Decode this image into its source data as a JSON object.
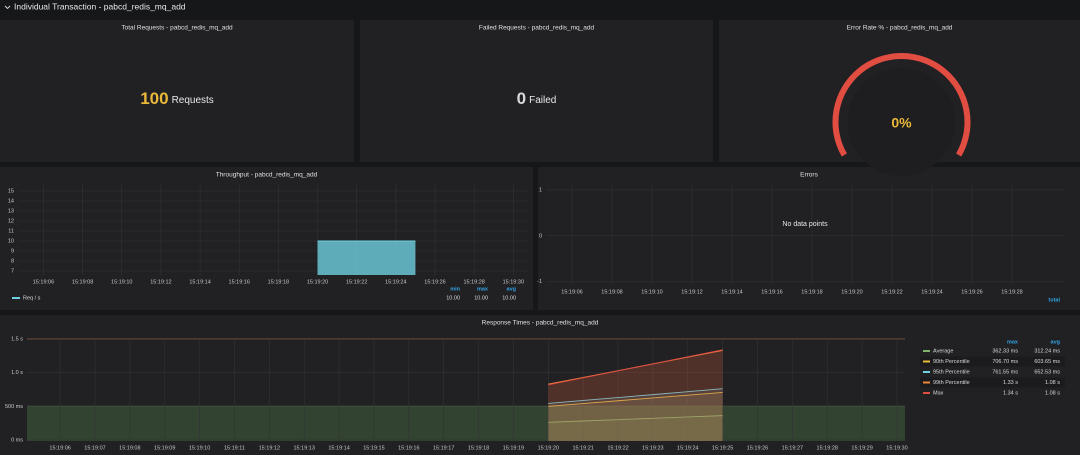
{
  "header": {
    "title": "Individual Transaction - pabcd_redis_mq_add"
  },
  "stats": [
    {
      "title": "Total Requests - pabcd_redis_mq_add",
      "value": 100,
      "unit": "Requests",
      "color": "#eab839"
    },
    {
      "title": "Failed Requests - pabcd_redis_mq_add",
      "value": 0,
      "unit": "Failed",
      "color": "#d8d9da"
    },
    {
      "title": "Error Rate % - pabcd_redis_mq_add",
      "value": 0,
      "value_label": "0%",
      "color": "#eab839",
      "gauge_color": "#e24d42"
    }
  ],
  "throughput": {
    "type": "bar",
    "title": "Throughput - pabcd_redis_mq_add",
    "x": [
      "15:19:20",
      "15:19:25"
    ],
    "series": [
      {
        "name": "Req / s",
        "color": "#6ed0e0",
        "values": [
          10,
          10
        ],
        "stats": [
          "10.00",
          "10.00",
          "10.00"
        ]
      }
    ],
    "stat_columns": [
      "min",
      "max",
      "avg"
    ],
    "xlim": [
      "15:19:04.7",
      "15:19:30.75"
    ],
    "xticks": [
      "15:19:06",
      "15:19:08",
      "15:19:10",
      "15:19:12",
      "15:19:14",
      "15:19:16",
      "15:19:18",
      "15:19:20",
      "15:19:22",
      "15:19:24",
      "15:19:26",
      "15:19:28",
      "15:19:30"
    ],
    "ylim": [
      6.6,
      15.7
    ],
    "yticks": [
      7,
      8,
      9,
      10,
      11,
      12,
      13,
      14,
      15
    ],
    "grid": true
  },
  "errors": {
    "type": "line",
    "title": "Errors",
    "message": "No data points",
    "x": [],
    "series": [],
    "stat_columns": [
      "total"
    ],
    "xlim": [
      "15:19:04.7",
      "15:19:30.65"
    ],
    "xticks": [
      "15:19:06",
      "15:19:08",
      "15:19:10",
      "15:19:12",
      "15:19:14",
      "15:19:16",
      "15:19:18",
      "15:19:20",
      "15:19:22",
      "15:19:24",
      "15:19:26",
      "15:19:28"
    ],
    "ylim": [
      -1.07,
      1.15
    ],
    "yticks": [
      -1,
      0,
      1
    ],
    "grid": true
  },
  "response_times": {
    "type": "line",
    "title": "Response Times - pabcd_redis_mq_add",
    "x": [
      "15:19:20",
      "15:19:21",
      "15:19:22",
      "15:19:23",
      "15:19:24",
      "15:19:25"
    ],
    "series": [
      {
        "name": "Average",
        "color": "#7eb26d",
        "values": [
          262,
          282,
          302,
          322,
          342,
          362
        ],
        "stats": [
          "362.33 ms",
          "312.24 ms"
        ]
      },
      {
        "name": "90th Percentile",
        "color": "#eab839",
        "values": [
          500,
          541,
          583,
          624,
          666,
          706.7
        ],
        "stats": [
          "706.70 ms",
          "603.65 ms"
        ]
      },
      {
        "name": "95th Percentile",
        "color": "#6ed0e0",
        "values": [
          543,
          587,
          631,
          674,
          718,
          761.55
        ],
        "stats": [
          "761.55 ms",
          "652.53 ms"
        ]
      },
      {
        "name": "99th Percentile",
        "color": "#ef843c",
        "values": [
          830,
          930,
          1030,
          1130,
          1230,
          1330
        ],
        "stats": [
          "1.33 s",
          "1.08 s"
        ]
      },
      {
        "name": "Max",
        "color": "#e24d42",
        "values": [
          820,
          924,
          1028,
          1132,
          1236,
          1340
        ],
        "stats": [
          "1.34 s",
          "1.08 s"
        ]
      }
    ],
    "stat_columns": [
      "max",
      "avg"
    ],
    "thresholds": [
      {
        "value": 500,
        "color": "#629e51"
      },
      {
        "value": 1500,
        "color": "#ef843c"
      }
    ],
    "xlim": [
      "15:19:05.05",
      "15:19:30.23"
    ],
    "xticks": [
      "15:19:06",
      "15:19:07",
      "15:19:08",
      "15:19:09",
      "15:19:10",
      "15:19:11",
      "15:19:12",
      "15:19:13",
      "15:19:14",
      "15:19:15",
      "15:19:16",
      "15:19:17",
      "15:19:18",
      "15:19:19",
      "15:19:20",
      "15:19:21",
      "15:19:22",
      "15:19:23",
      "15:19:24",
      "15:19:25",
      "15:19:26",
      "15:19:27",
      "15:19:28",
      "15:19:29",
      "15:19:30"
    ],
    "ylim": [
      -15,
      1530
    ],
    "yticks": [
      {
        "value": 0,
        "label": "0 ms"
      },
      {
        "value": 500,
        "label": "500 ms"
      },
      {
        "value": 1000,
        "label": "1.0 s"
      },
      {
        "value": 1500,
        "label": "1.5 s"
      }
    ],
    "grid": true
  }
}
